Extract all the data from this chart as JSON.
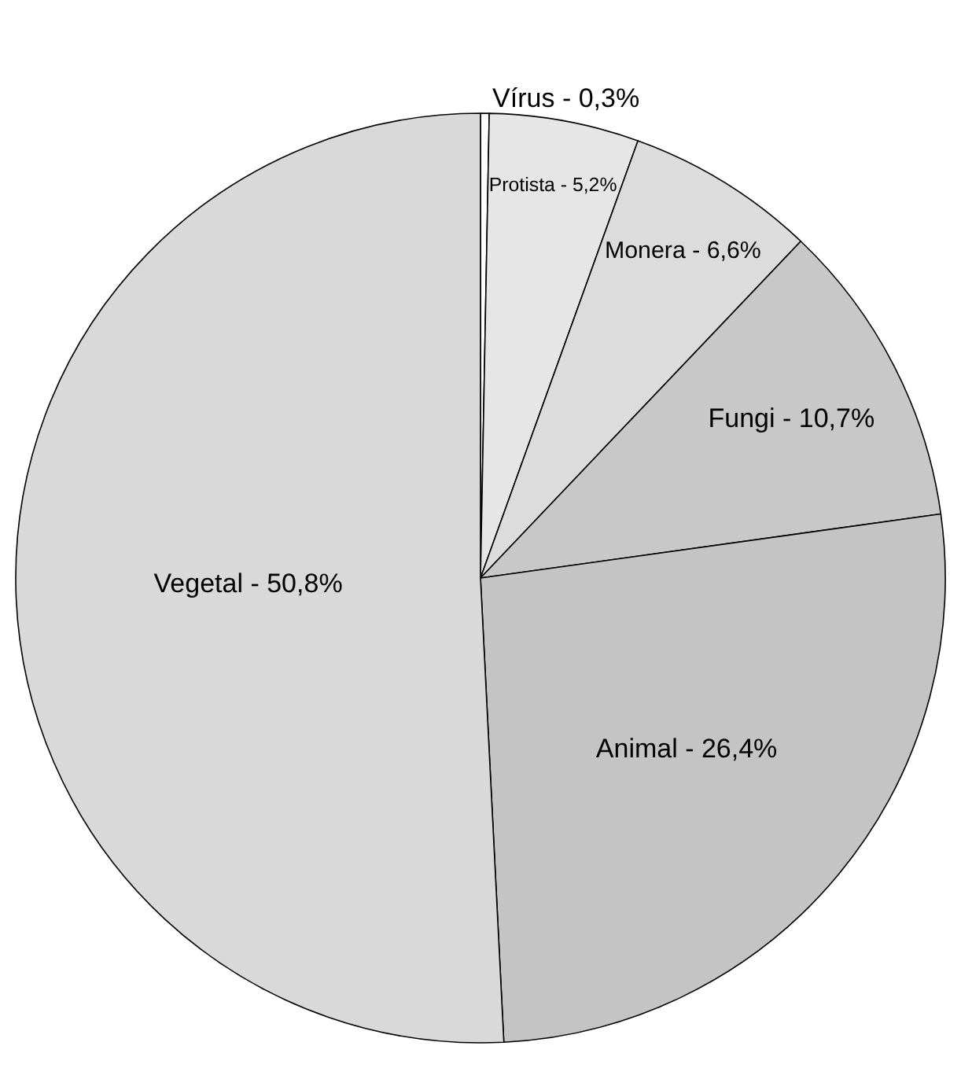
{
  "chart_data": {
    "type": "pie",
    "categories": [
      "Vírus",
      "Protista",
      "Monera",
      "Fungi",
      "Animal",
      "Vegetal"
    ],
    "values": [
      0.3,
      5.2,
      6.6,
      10.7,
      26.4,
      50.8
    ],
    "value_labels": [
      "0,3%",
      "5,2%",
      "6,6%",
      "10,7%",
      "26,4%",
      "50,8%"
    ],
    "colors": [
      "#ffffff",
      "#e6e6e6",
      "#dcdcdc",
      "#c8c8c8",
      "#c4c4c4",
      "#d9d9d9"
    ],
    "legend": false
  }
}
